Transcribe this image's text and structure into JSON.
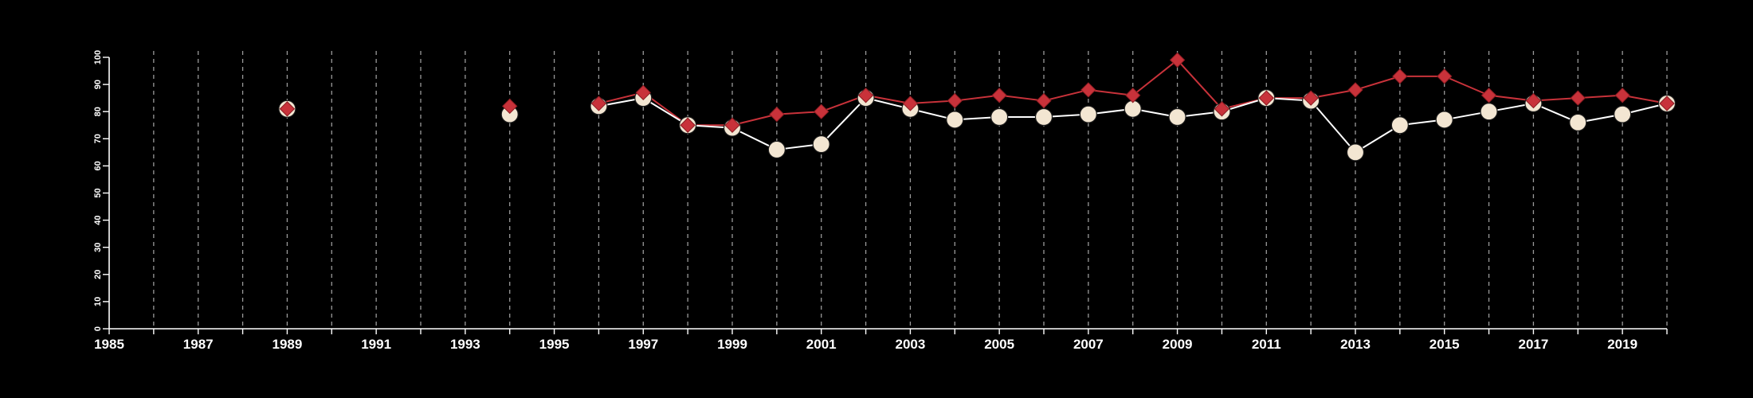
{
  "colors": {
    "background": "#000000",
    "axis": "#ffffff",
    "grid": "#9a9a9a",
    "series_a": "#c8323a",
    "series_b_fill": "#f3e6d2",
    "series_b_line": "#ffffff"
  },
  "chart_data": {
    "type": "line",
    "title": "",
    "xlabel": "",
    "ylabel": "",
    "xlim": [
      1985,
      2020
    ],
    "ylim": [
      0,
      100
    ],
    "x_ticks": [
      1985,
      1987,
      1989,
      1991,
      1993,
      1995,
      1997,
      1999,
      2001,
      2003,
      2005,
      2007,
      2009,
      2011,
      2013,
      2015,
      2017,
      2019
    ],
    "y_ticks": [
      0,
      10,
      20,
      30,
      40,
      50,
      60,
      70,
      80,
      90,
      100
    ],
    "grid": "vertical dashed lines at every year",
    "legend": "none",
    "series": [
      {
        "marker": "diamond",
        "connect_consecutive_years_only": true,
        "x": [
          1989,
          1994,
          1996,
          1997,
          1998,
          1999,
          2000,
          2001,
          2002,
          2003,
          2004,
          2005,
          2006,
          2007,
          2008,
          2009,
          2010,
          2011,
          2012,
          2013,
          2014,
          2015,
          2016,
          2017,
          2018,
          2019,
          2020
        ],
        "values": [
          81,
          82,
          83,
          87,
          75,
          75,
          79,
          80,
          86,
          83,
          84,
          86,
          84,
          88,
          86,
          99,
          81,
          85,
          85,
          88,
          93,
          93,
          86,
          84,
          85,
          86,
          83
        ]
      },
      {
        "marker": "circle",
        "connect_consecutive_years_only": true,
        "x": [
          1989,
          1994,
          1996,
          1997,
          1998,
          1999,
          2000,
          2001,
          2002,
          2003,
          2004,
          2005,
          2006,
          2007,
          2008,
          2009,
          2010,
          2011,
          2012,
          2013,
          2014,
          2015,
          2016,
          2017,
          2018,
          2019,
          2020
        ],
        "values": [
          81,
          79,
          82,
          85,
          75,
          74,
          66,
          68,
          85,
          81,
          77,
          78,
          78,
          79,
          81,
          78,
          80,
          85,
          84,
          65,
          75,
          77,
          80,
          83,
          76,
          79,
          83
        ]
      }
    ]
  }
}
